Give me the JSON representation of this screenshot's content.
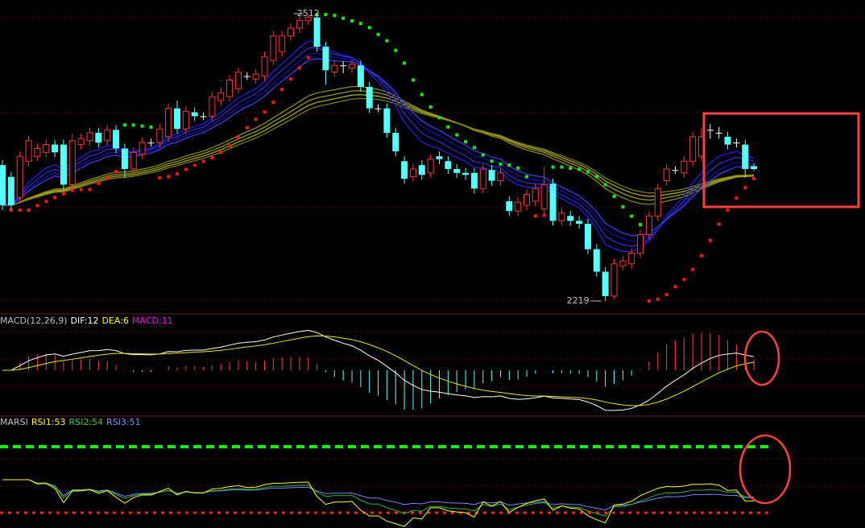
{
  "chart_data": {
    "type": "candlestick",
    "open": [
      2358,
      2346,
      2325,
      2362,
      2367,
      2371,
      2379,
      2379,
      2338,
      2379,
      2383,
      2391,
      2383,
      2394,
      2375,
      2354,
      2369,
      2381,
      2381,
      2387,
      2416,
      2395,
      2412,
      2408,
      2408,
      2424,
      2428,
      2436,
      2449,
      2446,
      2449,
      2465,
      2474,
      2490,
      2498,
      2506,
      2509,
      2479,
      2453,
      2460,
      2457,
      2460,
      2438,
      2416,
      2416,
      2391,
      2362,
      2346,
      2358,
      2350,
      2367,
      2362,
      2354,
      2350,
      2350,
      2334,
      2353,
      2342,
      2321,
      2311,
      2317,
      2321,
      2313,
      2339,
      2301,
      2306,
      2301,
      2298,
      2272,
      2249,
      2224,
      2255,
      2257,
      2268,
      2287,
      2306,
      2342,
      2353,
      2350,
      2362,
      2367,
      2394,
      2391,
      2387,
      2381,
      2379,
      2357
    ],
    "high": [
      2363,
      2351,
      2372,
      2388,
      2380,
      2384,
      2384,
      2384,
      2390,
      2390,
      2396,
      2396,
      2399,
      2399,
      2380,
      2376,
      2386,
      2385,
      2400,
      2421,
      2424,
      2418,
      2417,
      2412,
      2433,
      2437,
      2450,
      2458,
      2453,
      2456,
      2474,
      2495,
      2495,
      2503,
      2510,
      2512,
      2511,
      2484,
      2465,
      2464,
      2466,
      2465,
      2443,
      2420,
      2421,
      2396,
      2367,
      2359,
      2363,
      2369,
      2372,
      2367,
      2359,
      2355,
      2355,
      2359,
      2358,
      2355,
      2326,
      2325,
      2333,
      2339,
      2356,
      2344,
      2314,
      2311,
      2306,
      2303,
      2277,
      2254,
      2262,
      2265,
      2273,
      2292,
      2311,
      2339,
      2359,
      2357,
      2367,
      2392,
      2396,
      2400,
      2397,
      2392,
      2385,
      2384,
      2360
    ],
    "low": [
      2312,
      2312,
      2320,
      2357,
      2362,
      2366,
      2366,
      2333,
      2333,
      2374,
      2378,
      2376,
      2378,
      2370,
      2345,
      2349,
      2364,
      2377,
      2376,
      2382,
      2390,
      2390,
      2403,
      2404,
      2403,
      2419,
      2423,
      2431,
      2445,
      2441,
      2444,
      2460,
      2469,
      2485,
      2493,
      2501,
      2474,
      2440,
      2448,
      2452,
      2452,
      2433,
      2411,
      2412,
      2386,
      2367,
      2339,
      2341,
      2343,
      2345,
      2359,
      2349,
      2345,
      2343,
      2329,
      2329,
      2337,
      2337,
      2306,
      2306,
      2312,
      2316,
      2308,
      2296,
      2296,
      2296,
      2293,
      2267,
      2244,
      2219,
      2221,
      2250,
      2252,
      2263,
      2282,
      2301,
      2337,
      2349,
      2345,
      2357,
      2362,
      2385,
      2385,
      2374,
      2376,
      2345,
      2352
    ],
    "close": [
      2317,
      2317,
      2367,
      2383,
      2375,
      2379,
      2371,
      2338,
      2383,
      2385,
      2391,
      2381,
      2394,
      2375,
      2354,
      2371,
      2381,
      2381,
      2395,
      2416,
      2395,
      2413,
      2408,
      2408,
      2428,
      2432,
      2445,
      2453,
      2449,
      2451,
      2469,
      2490,
      2490,
      2498,
      2506,
      2509,
      2479,
      2455,
      2460,
      2460,
      2461,
      2438,
      2416,
      2416,
      2391,
      2372,
      2344,
      2354,
      2348,
      2364,
      2364,
      2354,
      2350,
      2348,
      2334,
      2354,
      2342,
      2350,
      2311,
      2320,
      2328,
      2334,
      2338,
      2301,
      2309,
      2301,
      2298,
      2272,
      2249,
      2224,
      2257,
      2260,
      2268,
      2287,
      2306,
      2334,
      2354,
      2353,
      2362,
      2387,
      2387,
      2394,
      2391,
      2379,
      2381,
      2354,
      2354
    ],
    "max_label": 2512,
    "min_label": 2219,
    "up_color": "#ff3232",
    "down_color": "#54ffff",
    "panels": [
      {
        "labels": [
          "MACD(12,26,9)",
          "DIF:12",
          "DEA:6",
          "MACD:11"
        ],
        "colors": [
          "#c0c0c0",
          "#ffffff",
          "#ffff00",
          "#ff00ff"
        ]
      },
      {
        "labels": [
          "MARSI",
          "RSI1:53",
          "RSI2:54",
          "RSI3:51"
        ],
        "colors": [
          "#c0c0c0",
          "#ffff00",
          "#33cc33",
          "#8888ff"
        ]
      }
    ]
  }
}
